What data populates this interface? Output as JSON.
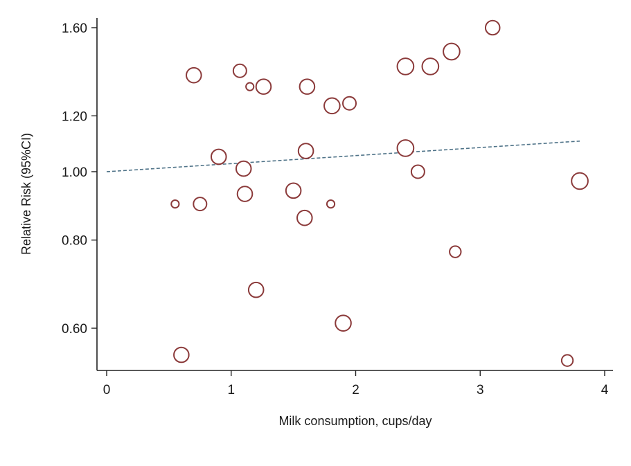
{
  "chart_data": {
    "type": "scatter",
    "title": "",
    "xlabel": "Milk consumption, cups/day",
    "ylabel": "Relative  Risk (95%CI)",
    "y_scale": "log",
    "xlim": [
      0,
      4
    ],
    "ylim": [
      0.53,
      1.62
    ],
    "x_ticks": [
      0,
      1,
      2,
      3,
      4
    ],
    "x_tick_labels": [
      "0",
      "1",
      "2",
      "3",
      "4"
    ],
    "y_ticks": [
      0.6,
      0.8,
      1.0,
      1.2,
      1.6
    ],
    "y_tick_labels": [
      "0.60",
      "0.80",
      "1.00",
      "1.20",
      "1.60"
    ],
    "grid": false,
    "legend": "none",
    "marker_color": "#8b3a3a",
    "fit_color": "#4f7388",
    "series": [
      {
        "points": [
          {
            "x": 0.55,
            "y": 0.9,
            "weight": 1
          },
          {
            "x": 0.6,
            "y": 0.55,
            "weight": 3
          },
          {
            "x": 0.7,
            "y": 1.37,
            "weight": 3
          },
          {
            "x": 0.75,
            "y": 0.9,
            "weight": 2.5
          },
          {
            "x": 0.9,
            "y": 1.05,
            "weight": 3
          },
          {
            "x": 1.07,
            "y": 1.39,
            "weight": 2.5
          },
          {
            "x": 1.1,
            "y": 1.01,
            "weight": 3
          },
          {
            "x": 1.11,
            "y": 0.93,
            "weight": 3
          },
          {
            "x": 1.15,
            "y": 1.32,
            "weight": 1
          },
          {
            "x": 1.2,
            "y": 0.68,
            "weight": 3
          },
          {
            "x": 1.26,
            "y": 1.32,
            "weight": 3
          },
          {
            "x": 1.5,
            "y": 0.94,
            "weight": 3
          },
          {
            "x": 1.59,
            "y": 0.86,
            "weight": 3
          },
          {
            "x": 1.6,
            "y": 1.07,
            "weight": 3
          },
          {
            "x": 1.61,
            "y": 1.32,
            "weight": 3
          },
          {
            "x": 1.8,
            "y": 0.9,
            "weight": 1
          },
          {
            "x": 1.81,
            "y": 1.24,
            "weight": 3.2
          },
          {
            "x": 1.9,
            "y": 0.61,
            "weight": 3.2
          },
          {
            "x": 1.95,
            "y": 1.25,
            "weight": 2.5
          },
          {
            "x": 2.4,
            "y": 1.08,
            "weight": 3.4
          },
          {
            "x": 2.4,
            "y": 1.41,
            "weight": 3.4
          },
          {
            "x": 2.5,
            "y": 1.0,
            "weight": 2.5
          },
          {
            "x": 2.6,
            "y": 1.41,
            "weight": 3.4
          },
          {
            "x": 2.77,
            "y": 1.48,
            "weight": 3.4
          },
          {
            "x": 2.8,
            "y": 0.77,
            "weight": 2
          },
          {
            "x": 3.1,
            "y": 1.6,
            "weight": 2.8
          },
          {
            "x": 3.7,
            "y": 0.54,
            "weight": 2
          },
          {
            "x": 3.8,
            "y": 0.97,
            "weight": 3.4
          }
        ]
      }
    ],
    "fit_line": {
      "x": [
        0,
        3.8
      ],
      "y": [
        1.0,
        1.105
      ]
    }
  }
}
